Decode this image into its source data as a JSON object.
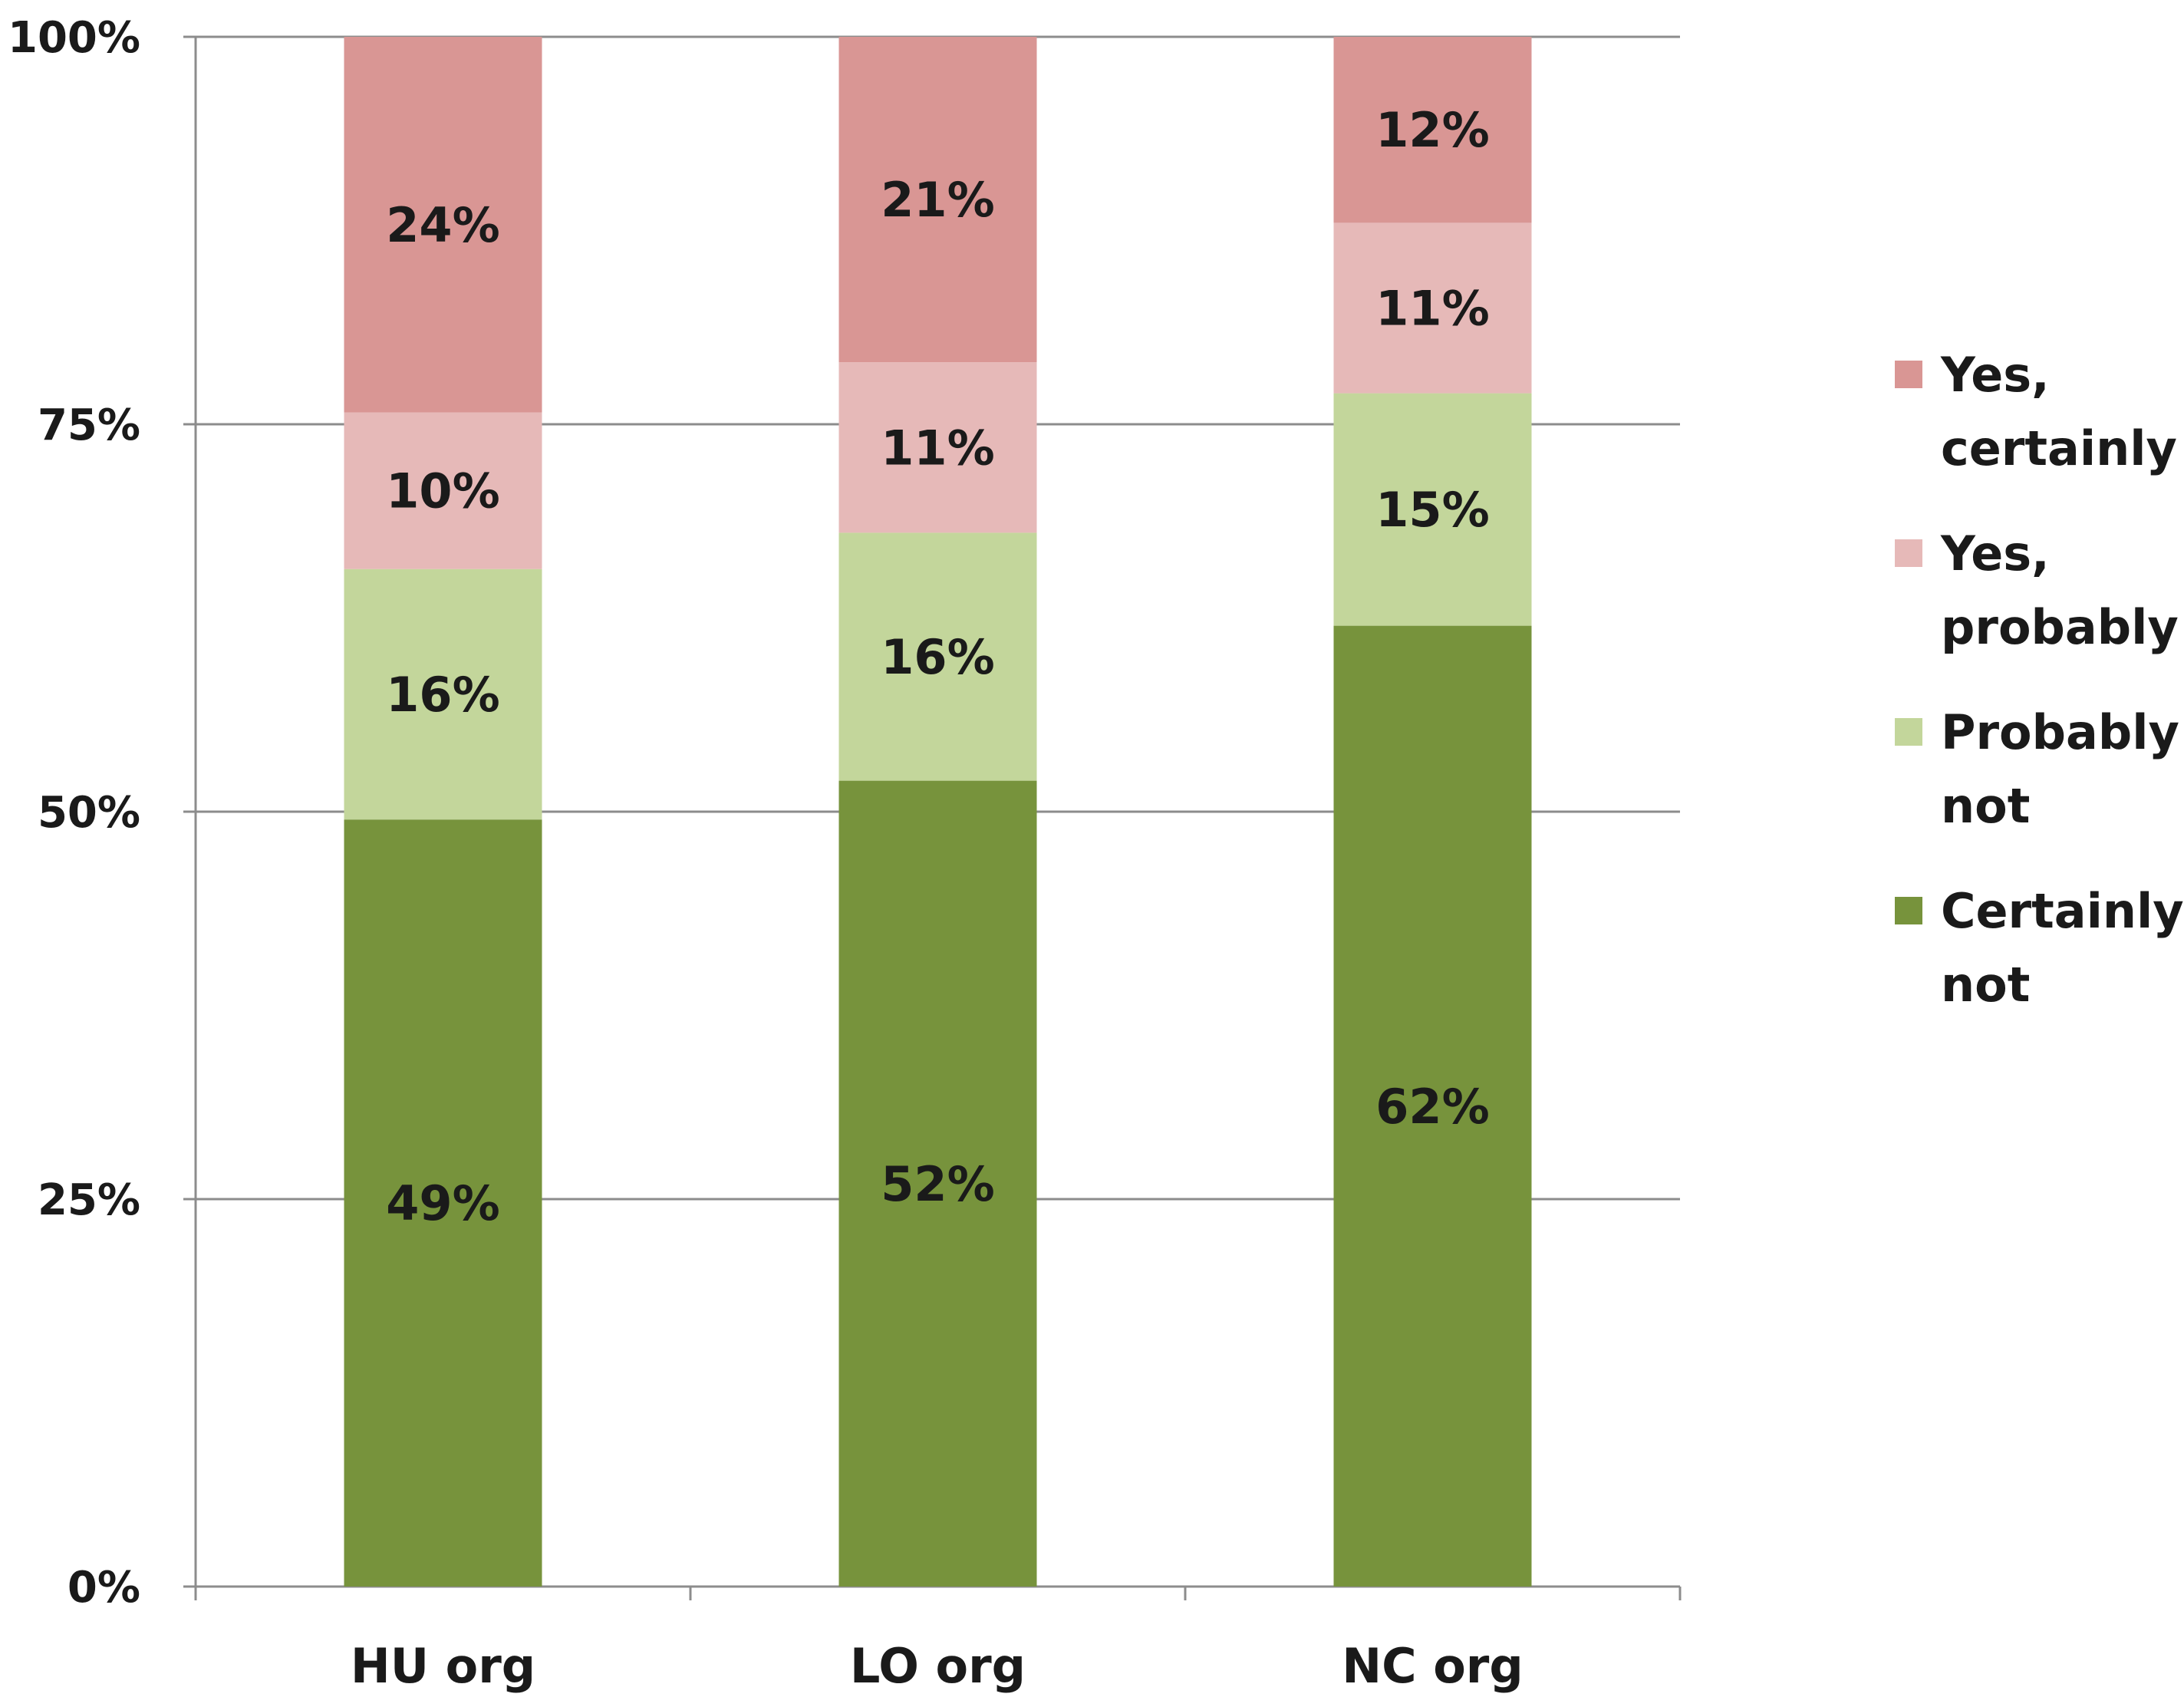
{
  "chart_data": {
    "type": "bar",
    "stacked": true,
    "percent": true,
    "categories": [
      "HU org",
      "LO org",
      "NC org"
    ],
    "series": [
      {
        "name": "Certainly not",
        "color": "#77933c",
        "values": [
          49,
          52,
          62
        ],
        "labels": [
          "49%",
          "52%",
          "62%"
        ]
      },
      {
        "name": "Probably not",
        "color": "#c3d69b",
        "values": [
          16,
          16,
          15
        ],
        "labels": [
          "16%",
          "16%",
          "15%"
        ]
      },
      {
        "name": "Yes, probably",
        "color": "#e6b9b8",
        "values": [
          10,
          11,
          11
        ],
        "labels": [
          "10%",
          "11%",
          "11%"
        ]
      },
      {
        "name": "Yes, certainly",
        "color": "#d99694",
        "values": [
          24,
          21,
          12
        ],
        "labels": [
          "24%",
          "21%",
          "12%"
        ]
      }
    ],
    "ylim": [
      0,
      100
    ],
    "yticks": [
      0,
      25,
      50,
      75,
      100
    ],
    "ytick_labels": [
      "0%",
      "25%",
      "50%",
      "75%",
      "100%"
    ],
    "grid": true,
    "legend": {
      "position": "right",
      "order": [
        "Yes, certainly",
        "Yes, probably",
        "Probably not",
        "Certainly not"
      ],
      "lines": [
        [
          "Yes,",
          "certainly"
        ],
        [
          "Yes,",
          "probably"
        ],
        [
          "Probably",
          "not"
        ],
        [
          "Certainly",
          "not"
        ]
      ]
    },
    "title": "",
    "xlabel": "",
    "ylabel": ""
  }
}
